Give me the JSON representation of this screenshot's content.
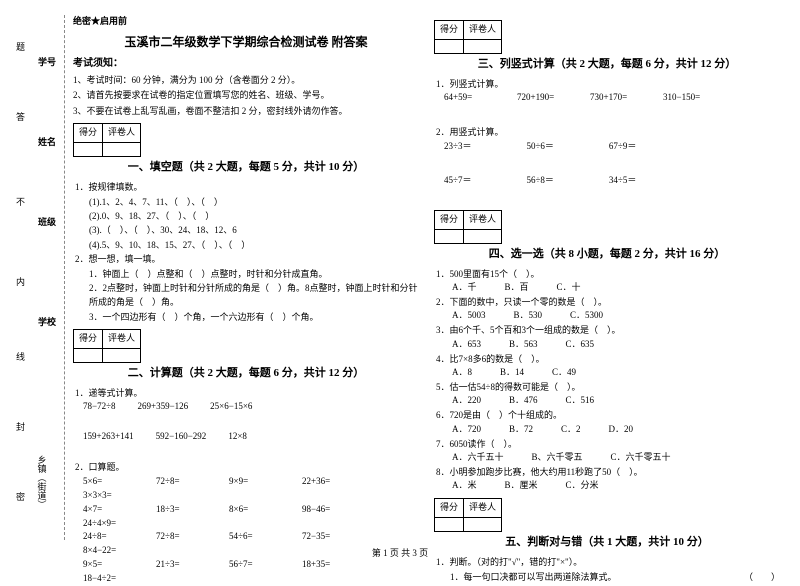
{
  "secret": "绝密★启用前",
  "title": "玉溪市二年级数学下学期综合检测试卷 附答案",
  "exam_notice_label": "考试须知：",
  "instructions": [
    "1、考试时间：60 分钟，满分为 100 分（含卷面分 2 分）。",
    "2、请首先按要求在试卷的指定位置填写您的姓名、班级、学号。",
    "3、不要在试卷上乱写乱画，卷面不整洁扣 2 分，密封线外请勿作答。"
  ],
  "score_labels": {
    "score": "得分",
    "grader": "评卷人"
  },
  "binding": {
    "fields": [
      "学号",
      "姓名",
      "班级",
      "学校",
      "乡镇（街道）"
    ],
    "seals": [
      "题",
      "答",
      "不",
      "内",
      "线",
      "封",
      "密"
    ]
  },
  "sections": {
    "s1": {
      "title": "一、填空题（共 2 大题，每题 5 分，共计 10 分）"
    },
    "s2": {
      "title": "二、计算题（共 2 大题，每题 6 分，共计 12 分）"
    },
    "s3": {
      "title": "三、列竖式计算（共 2 大题，每题 6 分，共计 12 分）"
    },
    "s4": {
      "title": "四、选一选（共 8 小题，每题 2 分，共计 16 分）"
    },
    "s5": {
      "title": "五、判断对与错（共 1 大题，共计 10 分）"
    }
  },
  "q1": {
    "stem": "1．按规律填数。",
    "lines": [
      "(1).1、2、4、7、11、（　）、（　）",
      "(2).0、9、18、27、（　）、（　）",
      "(3).（　）、（　）、30、24、18、12、6",
      "(4).5、9、10、18、15、27、（　）、（　）"
    ]
  },
  "q2": {
    "stem": "2．想一想，填一填。",
    "lines": [
      "1．钟面上（　）点整和（　）点整时，时针和分针成直角。",
      "2．2点整时，钟面上时针和分针所成的角是（　）角。8点整时，钟面上时针和分针所成的角是（　）角。",
      "3．一个四边形有（　）个角，一个六边形有（　）个角。"
    ]
  },
  "calc1": {
    "stem": "1．递等式计算。",
    "row1": [
      "78−72÷8",
      "269+359−126",
      "25×6−15×6"
    ],
    "row2": [
      "159+263+141",
      "592−160−292",
      "12×8"
    ]
  },
  "calc2": {
    "stem": "2．口算题。",
    "rows": [
      [
        "5×6=",
        "72÷8=",
        "9×9=",
        "22+36=",
        "3×3×3="
      ],
      [
        "4×7=",
        "18÷3=",
        "8×6=",
        "98−46=",
        "24÷4×9="
      ],
      [
        "24÷8=",
        "72÷8=",
        "54÷6=",
        "72−35=",
        "8×4−22="
      ],
      [
        "9×5=",
        "21÷3=",
        "56÷7=",
        "18+35=",
        "18−4÷2="
      ]
    ]
  },
  "col3_q1": {
    "stem": "1．列竖式计算。",
    "items": [
      "64+59=",
      "720+190=",
      "730+170=",
      "310−150="
    ]
  },
  "col3_q2": {
    "stem": "2．用竖式计算。",
    "rows": [
      [
        "23÷3＝",
        "50÷6＝",
        "67÷9＝"
      ],
      [
        "45÷7＝",
        "56÷8＝",
        "34÷5＝"
      ]
    ]
  },
  "choice": [
    {
      "stem": "1．500里面有15个（　）。",
      "opts": [
        "A．千",
        "B．百",
        "C．十"
      ]
    },
    {
      "stem": "2．下面的数中，只读一个零的数是（　）。",
      "opts": [
        "A．5003",
        "B．530",
        "C．5300"
      ]
    },
    {
      "stem": "3．由6个千、5个百和3个一组成的数是（　）。",
      "opts": [
        "A．653",
        "B．563",
        "C．635"
      ]
    },
    {
      "stem": "4．比7×8多6的数是（　）。",
      "opts": [
        "A．8",
        "B．14",
        "C．49"
      ]
    },
    {
      "stem": "5．估一估54÷8的得数可能是（　）。",
      "opts": [
        "A．220",
        "B．476",
        "C．516"
      ]
    },
    {
      "stem": "6．720是由（　）个十组成的。",
      "opts": [
        "A．720",
        "B．72",
        "C．2",
        "D．20"
      ]
    },
    {
      "stem": "7．6050读作（　）。",
      "opts": [
        "A．六千五十",
        "B、六千零五",
        "C．六千零五十"
      ]
    },
    {
      "stem": "8．小明参加跑步比赛，他大约用11秒跑了50（　）。",
      "opts": [
        "A．米",
        "B．厘米",
        "C．分米"
      ]
    }
  ],
  "judge": {
    "stem": "1．判断。（对的打\"√\"，错的打\"×\"）。",
    "line": "1．每一句口决都可以写出两道除法算式。",
    "paren": "（　　）"
  },
  "footer": "第 1 页 共 3 页"
}
